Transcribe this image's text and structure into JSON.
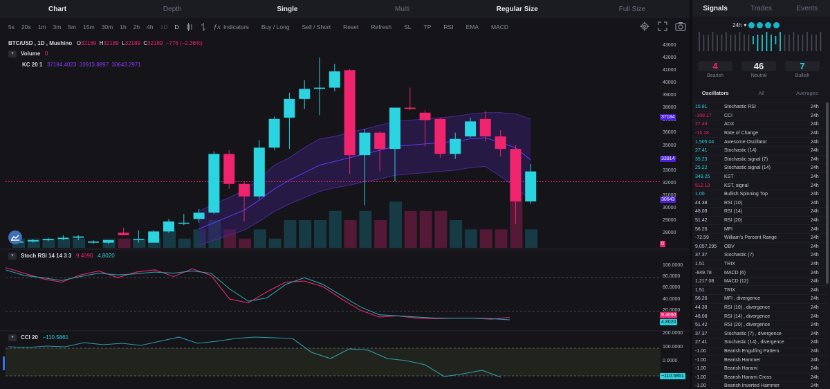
{
  "tabs": [
    "Chart",
    "Depth",
    "Single",
    "Multi",
    "Regular Size",
    "Full Size"
  ],
  "toolbar": {
    "intervals": [
      "5s",
      "20s",
      "1m",
      "3m",
      "5m",
      "15m",
      "30m",
      "1h",
      "2h",
      "4h",
      "1D",
      "D"
    ],
    "tools": [
      "Indicators",
      "Buy / Long",
      "Sell / Short",
      "Reset",
      "Refresh",
      "SL",
      "TP",
      "RSI",
      "EMA",
      "MACD"
    ],
    "icons": [
      "candle-icon",
      "bar-icon",
      "fx-icon",
      "settings-icon",
      "expand-icon",
      "camera-icon"
    ]
  },
  "symbol": {
    "pair": "BTC/USD",
    "interval": "1D",
    "source": "Mushino",
    "o_label": "O",
    "o": "32189",
    "h_label": "H",
    "h": "32189",
    "l_label": "L",
    "l": "32189",
    "c_label": "C",
    "c": "32189",
    "change": "−776 (−2.36%)"
  },
  "volume": {
    "label": "Volume",
    "value": "0"
  },
  "kc": {
    "label": "KC 20 1",
    "v1": "37184.4023",
    "v2": "33913.8897",
    "v3": "30643.2971"
  },
  "stoch": {
    "label": "Stoch RSI 14 14 3 3",
    "k": "9.4090",
    "d": "4.8020"
  },
  "cci": {
    "label": "CCI 20",
    "value": "−110.5861"
  },
  "price_axis": [
    "43000",
    "42000",
    "41000",
    "40000",
    "39000",
    "38000",
    "37000",
    "36000",
    "35000",
    "34000",
    "33000",
    "32000",
    "31000",
    "30000",
    "29000",
    "28000"
  ],
  "price_tags": [
    "37184",
    "33914",
    "30643",
    "0"
  ],
  "stoch_axis": [
    "100.0000",
    "80.0000",
    "60.0000",
    "40.0000",
    "20.0000",
    "0.0000"
  ],
  "stoch_tags": [
    "9.4090",
    "4.8020"
  ],
  "cci_axis": [
    "200.0000",
    "100.0000",
    "0.0000"
  ],
  "cci_tag": "−110.5861",
  "colors": {
    "up": "#2ad4e0",
    "down": "#f0246d",
    "kc": "#5a3bdc",
    "bg": "#141419"
  },
  "chart_data": {
    "type": "candlestick",
    "candles": [
      {
        "o": 27300,
        "h": 27500,
        "l": 27200,
        "c": 27400
      },
      {
        "o": 27400,
        "h": 27600,
        "l": 27300,
        "c": 27500
      },
      {
        "o": 27500,
        "h": 27700,
        "l": 27400,
        "c": 27600
      },
      {
        "o": 27600,
        "h": 27900,
        "l": 27500,
        "c": 27700
      },
      {
        "o": 27700,
        "h": 27900,
        "l": 27500,
        "c": 27800
      },
      {
        "o": 27300,
        "h": 27500,
        "l": 27200,
        "c": 27400
      },
      {
        "o": 27300,
        "h": 27500,
        "l": 27200,
        "c": 27500
      },
      {
        "o": 28100,
        "h": 28500,
        "l": 27900,
        "c": 27900
      },
      {
        "o": 27600,
        "h": 28300,
        "l": 27300,
        "c": 27600
      },
      {
        "o": 27300,
        "h": 28300,
        "l": 27300,
        "c": 28200
      },
      {
        "o": 28200,
        "h": 29200,
        "l": 28100,
        "c": 29000
      },
      {
        "o": 28900,
        "h": 29600,
        "l": 28700,
        "c": 28900
      },
      {
        "o": 29200,
        "h": 30000,
        "l": 28900,
        "c": 29700
      },
      {
        "o": 29700,
        "h": 34600,
        "l": 29600,
        "c": 34400
      },
      {
        "o": 34400,
        "h": 34700,
        "l": 31600,
        "c": 32000
      },
      {
        "o": 32000,
        "h": 32200,
        "l": 29000,
        "c": 31000
      },
      {
        "o": 31000,
        "h": 35500,
        "l": 30800,
        "c": 34900
      },
      {
        "o": 34900,
        "h": 37400,
        "l": 34700,
        "c": 37200
      },
      {
        "o": 37300,
        "h": 39300,
        "l": 34800,
        "c": 38800
      },
      {
        "o": 38800,
        "h": 40300,
        "l": 38000,
        "c": 39600
      },
      {
        "o": 39600,
        "h": 42100,
        "l": 37500,
        "c": 39700
      },
      {
        "o": 39700,
        "h": 41600,
        "l": 39400,
        "c": 41000
      },
      {
        "o": 41100,
        "h": 41200,
        "l": 32800,
        "c": 34300
      },
      {
        "o": 34300,
        "h": 36400,
        "l": 30300,
        "c": 36100
      },
      {
        "o": 36100,
        "h": 36200,
        "l": 33000,
        "c": 34800
      },
      {
        "o": 34800,
        "h": 38100,
        "l": 32200,
        "c": 38100
      },
      {
        "o": 38100,
        "h": 39700,
        "l": 37900,
        "c": 38000
      },
      {
        "o": 37700,
        "h": 37900,
        "l": 35000,
        "c": 37100
      },
      {
        "o": 37200,
        "h": 37300,
        "l": 34100,
        "c": 34400
      },
      {
        "o": 34400,
        "h": 36100,
        "l": 34000,
        "c": 35600
      },
      {
        "o": 35800,
        "h": 37300,
        "l": 35700,
        "c": 37000
      },
      {
        "o": 37200,
        "h": 37800,
        "l": 35400,
        "c": 35800
      },
      {
        "o": 35800,
        "h": 36300,
        "l": 34200,
        "c": 34800
      },
      {
        "o": 34800,
        "h": 35100,
        "l": 28800,
        "c": 30600
      },
      {
        "o": 30600,
        "h": 33600,
        "l": 30400,
        "c": 33000
      }
    ],
    "volume": [
      1,
      1,
      1,
      1,
      1,
      0,
      1,
      1,
      1,
      1,
      2,
      1,
      2,
      3,
      2,
      1,
      2,
      1,
      3,
      3,
      3,
      4,
      3,
      4,
      3,
      5,
      4,
      4,
      4,
      3,
      2,
      2,
      2,
      6,
      2
    ],
    "kc_upper": [
      null,
      null,
      null,
      null,
      null,
      null,
      null,
      null,
      null,
      null,
      null,
      null,
      29800,
      30400,
      30900,
      31500,
      32400,
      33500,
      34100,
      34900,
      35600,
      35800,
      36100,
      36400,
      36700,
      37000,
      37100,
      37200,
      37300,
      37400,
      37600,
      37700,
      37700,
      37600,
      37184
    ],
    "kc_mid": [
      null,
      null,
      null,
      null,
      null,
      null,
      null,
      null,
      null,
      null,
      null,
      null,
      28400,
      28900,
      29400,
      29900,
      30700,
      31600,
      32300,
      32900,
      33500,
      33800,
      34100,
      34400,
      34700,
      35000,
      35100,
      35200,
      35300,
      35400,
      35600,
      35700,
      35300,
      34900,
      33914
    ],
    "kc_lower": [
      null,
      null,
      null,
      null,
      null,
      null,
      null,
      null,
      null,
      null,
      null,
      null,
      27100,
      27500,
      27900,
      28300,
      29000,
      29800,
      30400,
      30900,
      31400,
      31700,
      31900,
      32200,
      32400,
      32700,
      32800,
      32900,
      33000,
      33100,
      33300,
      33400,
      32600,
      31800,
      30643
    ],
    "last_price": 32189,
    "ylim": [
      27500,
      43500
    ],
    "stoch_k": [
      98,
      88,
      78,
      72,
      85,
      92,
      80,
      90,
      94,
      82,
      96,
      84,
      42,
      35,
      55,
      72,
      74,
      64,
      42,
      22,
      10,
      12,
      8,
      7,
      8,
      8,
      6,
      9.409
    ],
    "stoch_d": [
      94,
      84,
      80,
      75,
      82,
      88,
      85,
      87,
      90,
      88,
      92,
      88,
      60,
      38,
      44,
      68,
      80,
      68,
      48,
      28,
      14,
      12,
      10,
      8,
      8,
      8,
      7,
      4.802
    ],
    "cci": [
      110,
      105,
      115,
      110,
      140,
      125,
      135,
      120,
      150,
      180,
      135,
      150,
      170,
      180,
      175,
      170,
      70,
      25,
      95,
      85,
      25,
      10,
      -20,
      -105,
      -85,
      -60,
      -110.586
    ],
    "stoch_ylim": [
      0,
      100
    ],
    "cci_ylim": [
      -120,
      200
    ]
  },
  "right": {
    "tabs": [
      "Signals",
      "Trades",
      "Events"
    ],
    "timeframe": "24h",
    "counts": [
      {
        "num": "4",
        "label": "Bearish",
        "color": "#f0246d"
      },
      {
        "num": "46",
        "label": "Neutral",
        "color": "#e6e8ee"
      },
      {
        "num": "7",
        "label": "Bullish",
        "color": "#2ad4e0"
      }
    ],
    "subtabs": [
      "Oscillators",
      "All",
      "Averages"
    ],
    "rows": [
      {
        "v": "15.81",
        "n": "Stochastic RSI",
        "t": "24h",
        "c": "#2ad4e0"
      },
      {
        "v": "-108.17",
        "n": "CCI",
        "t": "24h",
        "c": "#f0246d"
      },
      {
        "v": "27.49",
        "n": "ADX",
        "t": "24h",
        "c": "#f0246d"
      },
      {
        "v": "-16.18",
        "n": "Rate of Change",
        "t": "24h",
        "c": "#f0246d"
      },
      {
        "v": "1,505.04",
        "n": "Awesome Oscillator",
        "t": "24h",
        "c": "#2ad4e0"
      },
      {
        "v": "27.41",
        "n": "Stochastic (14)",
        "t": "24h",
        "c": "#2ad4e0"
      },
      {
        "v": "35.23",
        "n": "Stochastic signal (7)",
        "t": "24h",
        "c": "#2ad4e0"
      },
      {
        "v": "25.22",
        "n": "Stochastic signal (14)",
        "t": "24h",
        "c": "#2ad4e0"
      },
      {
        "v": "349.25",
        "n": "KST",
        "t": "24h",
        "c": "#2ad4e0"
      },
      {
        "v": "512.13",
        "n": "KST, signal",
        "t": "24h",
        "c": "#f0246d"
      },
      {
        "v": "1.00",
        "n": "Bullish Spinning Top",
        "t": "24h",
        "c": "#2ad4e0"
      },
      {
        "v": "44.38",
        "n": "RSI (10)",
        "t": "24h",
        "c": "#c9ccd6"
      },
      {
        "v": "48.08",
        "n": "RSI (14)",
        "t": "24h",
        "c": "#c9ccd6"
      },
      {
        "v": "51.42",
        "n": "RSI (20)",
        "t": "24h",
        "c": "#c9ccd6"
      },
      {
        "v": "56.26",
        "n": "MFI",
        "t": "24h",
        "c": "#c9ccd6"
      },
      {
        "v": "-72.59",
        "n": "William's Percent Range",
        "t": "24h",
        "c": "#c9ccd6"
      },
      {
        "v": "9,057,295",
        "n": "OBV",
        "t": "24h",
        "c": "#c9ccd6"
      },
      {
        "v": "37.37",
        "n": "Stochastic (7)",
        "t": "24h",
        "c": "#c9ccd6"
      },
      {
        "v": "1.51",
        "n": "TRIX",
        "t": "24h",
        "c": "#c9ccd6"
      },
      {
        "v": "-849.78",
        "n": "MACD (6)",
        "t": "24h",
        "c": "#c9ccd6"
      },
      {
        "v": "1,217.08",
        "n": "MACD (12)",
        "t": "24h",
        "c": "#c9ccd6"
      },
      {
        "v": "1.51",
        "n": "TRIX",
        "t": "24h",
        "c": "#c9ccd6"
      },
      {
        "v": "56.26",
        "n": "MFI , divergence",
        "t": "24h",
        "c": "#c9ccd6"
      },
      {
        "v": "44.38",
        "n": "RSI (10) , divergence",
        "t": "24h",
        "c": "#c9ccd6"
      },
      {
        "v": "48.08",
        "n": "RSI (14) , divergence",
        "t": "24h",
        "c": "#c9ccd6"
      },
      {
        "v": "51.42",
        "n": "RSI (20) , divergence",
        "t": "24h",
        "c": "#c9ccd6"
      },
      {
        "v": "37.37",
        "n": "Stochastic (7) , divergence",
        "t": "24h",
        "c": "#c9ccd6"
      },
      {
        "v": "27.41",
        "n": "Stochastic (14) , divergence",
        "t": "24h",
        "c": "#c9ccd6"
      },
      {
        "v": "-1.00",
        "n": "Bearish Engulfing Pattern",
        "t": "24h",
        "c": "#c9ccd6"
      },
      {
        "v": "-1.00",
        "n": "Bearish Hammer",
        "t": "24h",
        "c": "#c9ccd6"
      },
      {
        "v": "-1.00",
        "n": "Bearish Harami",
        "t": "24h",
        "c": "#c9ccd6"
      },
      {
        "v": "-1.00",
        "n": "Bearish Harami Cross",
        "t": "24h",
        "c": "#c9ccd6"
      },
      {
        "v": "-1.00",
        "n": "Bearish Inverted Hammer",
        "t": "24h",
        "c": "#c9ccd6"
      }
    ]
  }
}
